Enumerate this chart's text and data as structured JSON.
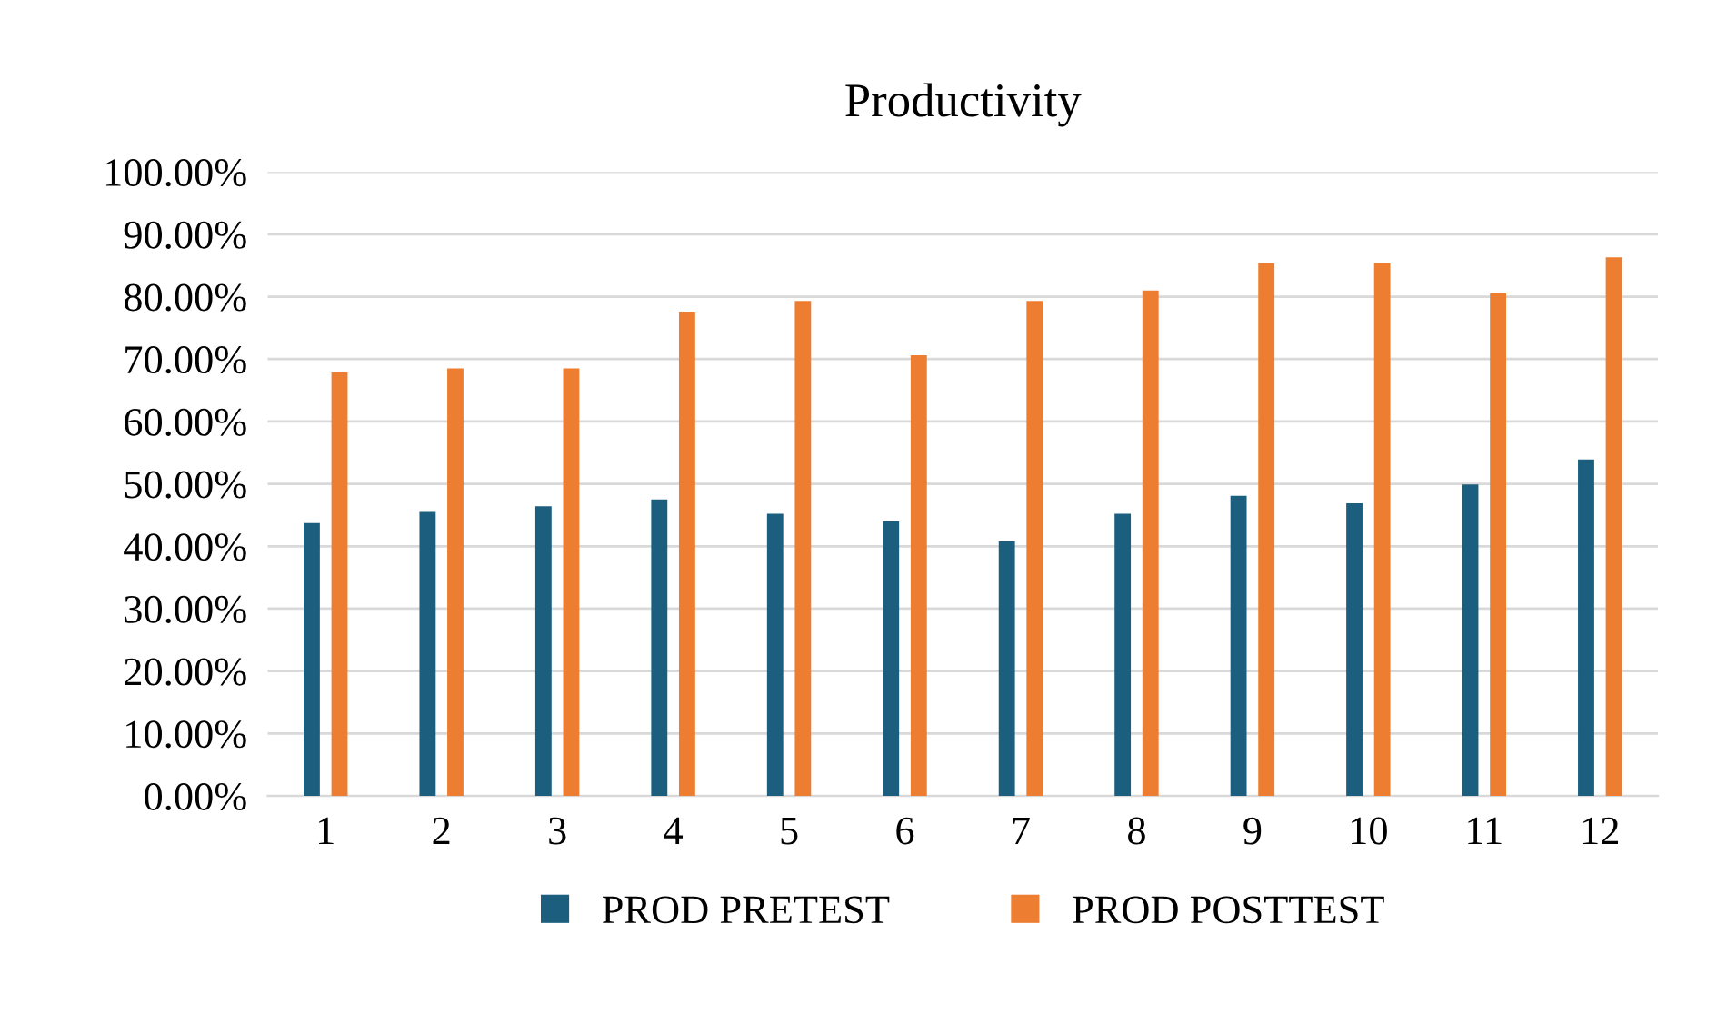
{
  "chart_data": {
    "type": "bar",
    "title": "Productivity",
    "categories": [
      "1",
      "2",
      "3",
      "4",
      "5",
      "6",
      "7",
      "8",
      "9",
      "10",
      "11",
      "12"
    ],
    "series": [
      {
        "name": "PROD PRETEST",
        "color": "#1b5e7e",
        "values": [
          43.7,
          45.5,
          46.4,
          47.5,
          45.2,
          44.0,
          40.8,
          45.2,
          48.1,
          46.9,
          49.9,
          53.9
        ]
      },
      {
        "name": "PROD POSTTEST",
        "color": "#ed7d31",
        "values": [
          67.9,
          68.5,
          68.5,
          77.6,
          79.3,
          70.6,
          79.3,
          81.0,
          85.4,
          85.4,
          80.5,
          86.3
        ]
      }
    ],
    "ylim": [
      0,
      100
    ],
    "yticks": [
      {
        "value": 0,
        "label": "0.00%"
      },
      {
        "value": 10,
        "label": "10.00%"
      },
      {
        "value": 20,
        "label": "20.00%"
      },
      {
        "value": 30,
        "label": "30.00%"
      },
      {
        "value": 40,
        "label": "40.00%"
      },
      {
        "value": 50,
        "label": "50.00%"
      },
      {
        "value": 60,
        "label": "60.00%"
      },
      {
        "value": 70,
        "label": "70.00%"
      },
      {
        "value": 80,
        "label": "80.00%"
      },
      {
        "value": 90,
        "label": "90.00%"
      },
      {
        "value": 100,
        "label": "100.00%"
      }
    ],
    "grid": "y",
    "legend": "bottom"
  }
}
